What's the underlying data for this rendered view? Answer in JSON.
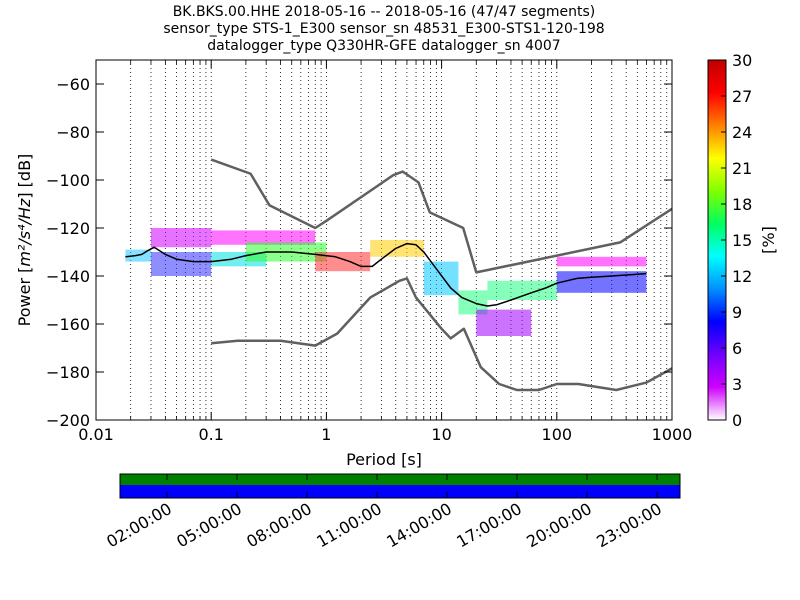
{
  "chart_data": {
    "type": "heatmap",
    "title_lines": [
      "BK.BKS.00.HHE   2018-05-16 -- 2018-05-16  (47/47 segments)",
      "sensor_type STS-1_E300 sensor_sn 48531_E300-STS1-120-198",
      "datalogger_type Q330HR-GFE datalogger_sn 4007"
    ],
    "xlabel": "Period [s]",
    "ylabel_text": "Power [",
    "ylabel_units": "m²/s⁴/Hz",
    "ylabel_suffix": "] [dB]",
    "xscale": "log",
    "xlim": [
      0.01,
      1000
    ],
    "ylim": [
      -200,
      -50
    ],
    "x_ticks": [
      {
        "value": 0.01,
        "label": "0.01"
      },
      {
        "value": 0.1,
        "label": "0.1"
      },
      {
        "value": 1,
        "label": "1"
      },
      {
        "value": 10,
        "label": "10"
      },
      {
        "value": 100,
        "label": "100"
      },
      {
        "value": 1000,
        "label": "1000"
      }
    ],
    "y_ticks": [
      {
        "value": -60,
        "label": "−60"
      },
      {
        "value": -80,
        "label": "−80"
      },
      {
        "value": -100,
        "label": "−100"
      },
      {
        "value": -120,
        "label": "−120"
      },
      {
        "value": -140,
        "label": "−140"
      },
      {
        "value": -160,
        "label": "−160"
      },
      {
        "value": -180,
        "label": "−180"
      },
      {
        "value": -200,
        "label": "−200"
      }
    ],
    "grid": "dotted-vertical",
    "nhnm_line": [
      [
        0.1,
        -168
      ],
      [
        0.17,
        -167
      ],
      [
        0.4,
        -167
      ],
      [
        0.8,
        -169
      ],
      [
        1.24,
        -164
      ],
      [
        2.4,
        -149
      ],
      [
        4.3,
        -142
      ],
      [
        5,
        -141
      ],
      [
        6,
        -149
      ],
      [
        10,
        -162
      ],
      [
        12,
        -166
      ],
      [
        15.6,
        -162
      ],
      [
        21.9,
        -178
      ],
      [
        31.6,
        -185
      ],
      [
        45,
        -187.5
      ],
      [
        70,
        -187.5
      ],
      [
        100,
        -185
      ],
      [
        154,
        -185
      ],
      [
        328,
        -187.5
      ],
      [
        600,
        -184.4
      ],
      [
        1000,
        -178.5
      ]
    ],
    "nlnm_line": [
      [
        0.1,
        -91.5
      ],
      [
        0.22,
        -97.4
      ],
      [
        0.32,
        -110.5
      ],
      [
        0.8,
        -120
      ],
      [
        1.0,
        -117
      ],
      [
        3.8,
        -98
      ],
      [
        4.6,
        -96.5
      ],
      [
        6.3,
        -101
      ],
      [
        7.9,
        -113.5
      ],
      [
        15.4,
        -120
      ],
      [
        20,
        -138.5
      ],
      [
        354.8,
        -126
      ],
      [
        1000,
        -112
      ]
    ],
    "mean_curve": [
      [
        0.018,
        -132
      ],
      [
        0.022,
        -131.5
      ],
      [
        0.025,
        -131
      ],
      [
        0.028,
        -129.5
      ],
      [
        0.032,
        -128
      ],
      [
        0.04,
        -131
      ],
      [
        0.05,
        -133
      ],
      [
        0.07,
        -134
      ],
      [
        0.1,
        -134
      ],
      [
        0.15,
        -133
      ],
      [
        0.2,
        -131.5
      ],
      [
        0.3,
        -130
      ],
      [
        0.5,
        -130
      ],
      [
        0.8,
        -131
      ],
      [
        1.2,
        -132
      ],
      [
        1.6,
        -134
      ],
      [
        2.0,
        -136
      ],
      [
        2.5,
        -136
      ],
      [
        3.0,
        -133
      ],
      [
        4.0,
        -128.5
      ],
      [
        5.0,
        -126.5
      ],
      [
        6.0,
        -127
      ],
      [
        7.0,
        -130
      ],
      [
        9.0,
        -137
      ],
      [
        12,
        -145
      ],
      [
        15,
        -149
      ],
      [
        20,
        -151.5
      ],
      [
        25,
        -152.5
      ],
      [
        30,
        -152
      ],
      [
        40,
        -150
      ],
      [
        60,
        -147
      ],
      [
        80,
        -145
      ],
      [
        100,
        -143
      ],
      [
        150,
        -141
      ],
      [
        200,
        -140.5
      ],
      [
        300,
        -140
      ],
      [
        600,
        -139
      ]
    ],
    "density_bands": [
      {
        "x": [
          0.018,
          0.03
        ],
        "y": [
          -134,
          -129
        ],
        "color": "#20c8ff"
      },
      {
        "x": [
          0.03,
          0.1
        ],
        "y": [
          -140,
          -130
        ],
        "color": "#3232ff"
      },
      {
        "x": [
          0.03,
          0.1
        ],
        "y": [
          -128,
          -120
        ],
        "color": "#d000ff"
      },
      {
        "x": [
          0.1,
          0.3
        ],
        "y": [
          -136,
          -130
        ],
        "color": "#00e0e0"
      },
      {
        "x": [
          0.1,
          0.8
        ],
        "y": [
          -127,
          -121
        ],
        "color": "#ff00ff"
      },
      {
        "x": [
          0.2,
          1.0
        ],
        "y": [
          -134,
          -126
        ],
        "color": "#30ff30"
      },
      {
        "x": [
          0.8,
          2.4
        ],
        "y": [
          -138,
          -130
        ],
        "color": "#ff3030"
      },
      {
        "x": [
          2.4,
          7.0
        ],
        "y": [
          -132,
          -125
        ],
        "color": "#ffcc00"
      },
      {
        "x": [
          7.0,
          14
        ],
        "y": [
          -148,
          -134
        ],
        "color": "#00c8ff"
      },
      {
        "x": [
          14,
          25
        ],
        "y": [
          -156,
          -146
        ],
        "color": "#20ff80"
      },
      {
        "x": [
          20,
          60
        ],
        "y": [
          -165,
          -154
        ],
        "color": "#a000ff"
      },
      {
        "x": [
          25,
          100
        ],
        "y": [
          -150,
          -142
        ],
        "color": "#20ff80"
      },
      {
        "x": [
          100,
          600
        ],
        "y": [
          -147,
          -138
        ],
        "color": "#0000ff"
      },
      {
        "x": [
          100,
          600
        ],
        "y": [
          -136,
          -132
        ],
        "color": "#ff00ff"
      }
    ],
    "colorbar": {
      "label": "[%]",
      "min": 0,
      "max": 30,
      "ticks": [
        {
          "value": 0,
          "label": "0"
        },
        {
          "value": 3,
          "label": "3"
        },
        {
          "value": 6,
          "label": "6"
        },
        {
          "value": 9,
          "label": "9"
        },
        {
          "value": 12,
          "label": "12"
        },
        {
          "value": 15,
          "label": "15"
        },
        {
          "value": 18,
          "label": "18"
        },
        {
          "value": 21,
          "label": "21"
        },
        {
          "value": 24,
          "label": "24"
        },
        {
          "value": 27,
          "label": "27"
        },
        {
          "value": 30,
          "label": "30"
        }
      ],
      "stops": [
        "#ffffff",
        "#d000ff",
        "#7000ff",
        "#0000ff",
        "#0090ff",
        "#00ffff",
        "#00ff60",
        "#80ff00",
        "#ffff00",
        "#ff8000",
        "#ff0000",
        "#c00000"
      ]
    },
    "coverage": {
      "time_ticks": [
        "02:00:00",
        "05:00:00",
        "08:00:00",
        "11:00:00",
        "14:00:00",
        "17:00:00",
        "20:00:00",
        "23:00:00"
      ],
      "segments_color": "#0000ff",
      "data_color": "#008000"
    }
  }
}
